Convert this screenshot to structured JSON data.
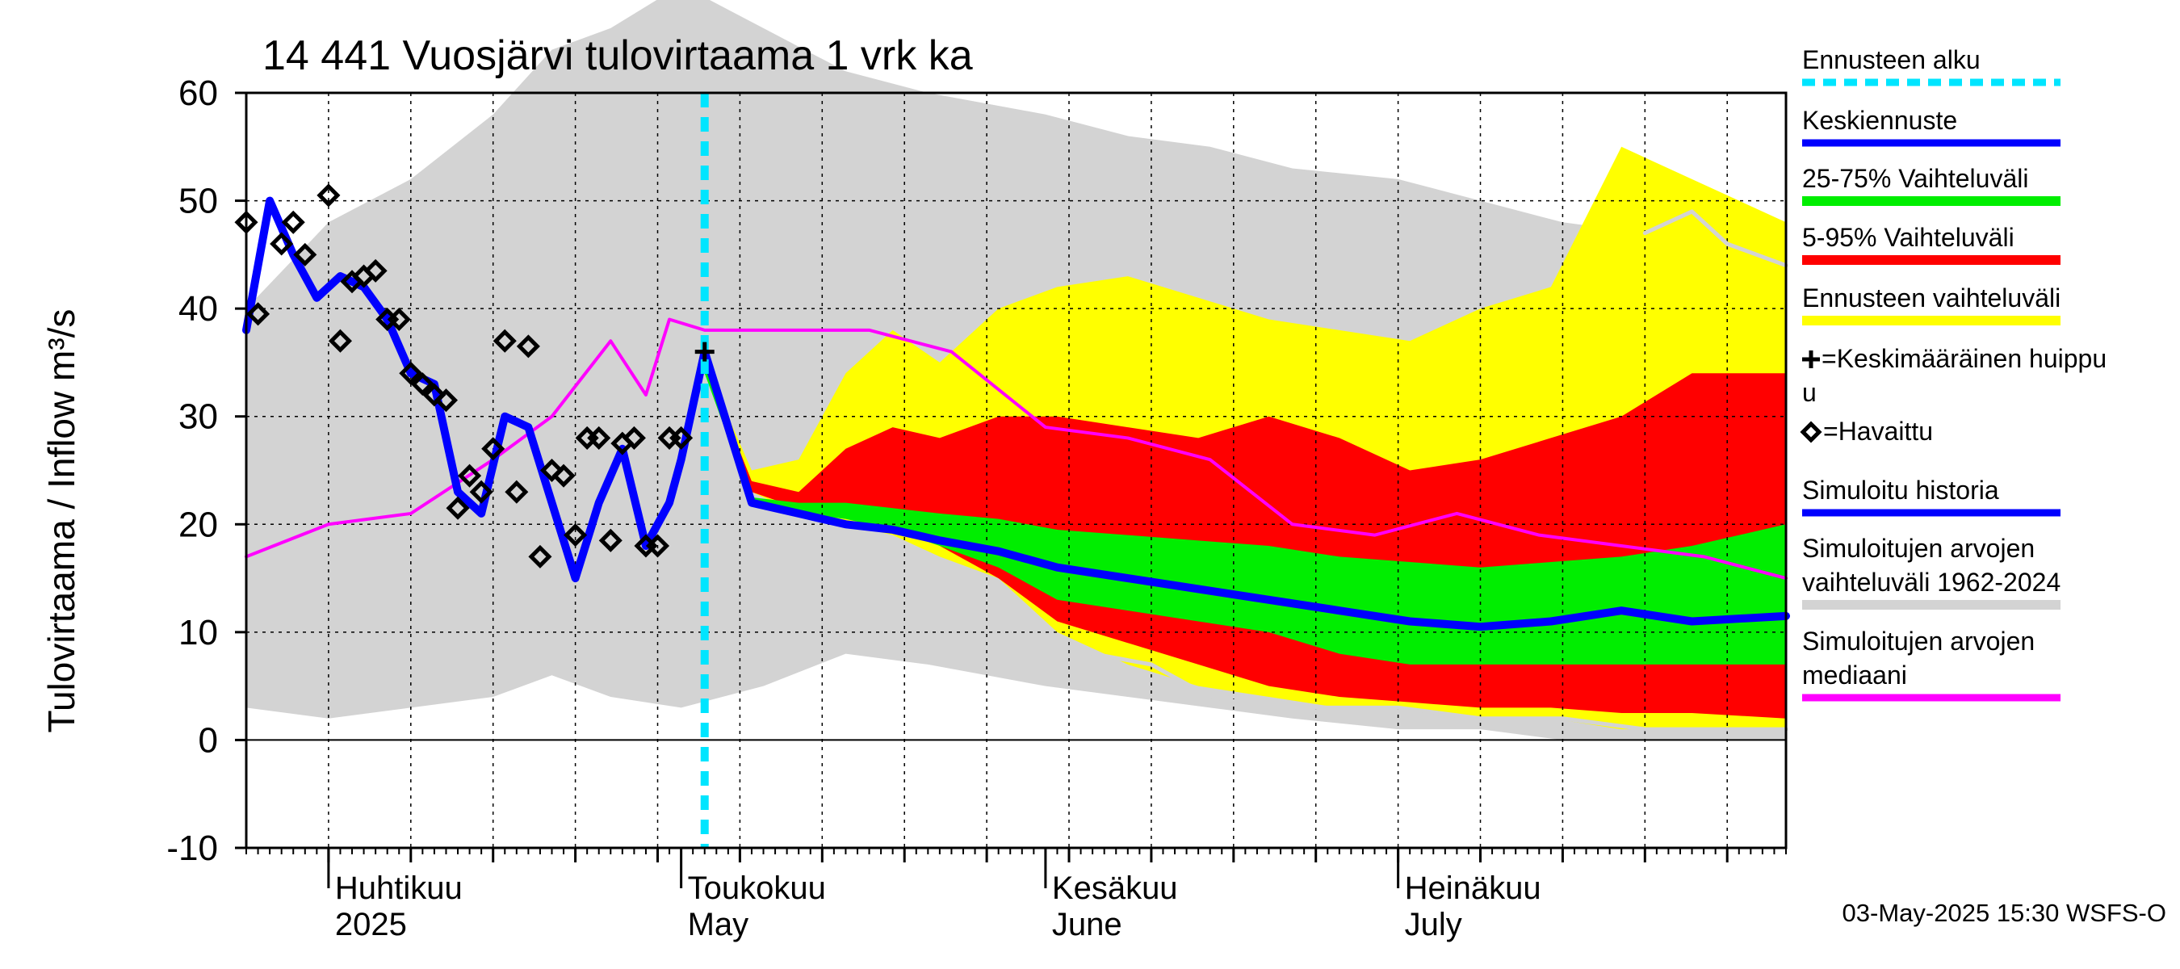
{
  "chart_data": {
    "type": "area",
    "title": "14 441 Vuosjärvi tulovirtaama 1 vrk ka",
    "ylabel": "Tulovirtaama / Inflow   m³/s",
    "ylim": [
      -10,
      60
    ],
    "yticks": [
      -10,
      0,
      10,
      20,
      30,
      40,
      50,
      60
    ],
    "xlim": [
      "2025-03-25",
      "2025-08-03"
    ],
    "grid": true,
    "months": [
      {
        "label_fi": "Huhtikuu",
        "label_en": "2025",
        "date": "2025-04-01"
      },
      {
        "label_fi": "Toukokuu",
        "label_en": "May",
        "date": "2025-05-01"
      },
      {
        "label_fi": "Kesäkuu",
        "label_en": "June",
        "date": "2025-06-01"
      },
      {
        "label_fi": "Heinäkuu",
        "label_en": "July",
        "date": "2025-07-01"
      }
    ],
    "forecast_start": "2025-05-03",
    "legend": [
      {
        "label": "Ennusteen alku",
        "color": "#00e5ff",
        "style": "dashed"
      },
      {
        "label": "Keskiennuste",
        "color": "#0000ff",
        "style": "line"
      },
      {
        "label": "25-75% Vaihteluväli",
        "color": "#00ee00",
        "style": "band"
      },
      {
        "label": "5-95% Vaihteluväli",
        "color": "#ff0000",
        "style": "band"
      },
      {
        "label": "Ennusteen vaihteluväli",
        "color": "#ffff00",
        "style": "band"
      },
      {
        "label": "=Keskimääräinen huippu",
        "label2": "u",
        "color": "#000000",
        "style": "plus"
      },
      {
        "label": "=Havaittu",
        "color": "#000000",
        "style": "diamond"
      },
      {
        "label": "Simuloitu historia",
        "color": "#0000ff",
        "style": "line"
      },
      {
        "label": "Simuloitujen arvojen",
        "label2": "vaihteluväli 1962-2024",
        "color": "#d3d3d3",
        "style": "band"
      },
      {
        "label": "Simuloitujen arvojen",
        "label2": "mediaani",
        "color": "#ff00ff",
        "style": "line"
      }
    ],
    "series": [
      {
        "name": "Simuloitujen arvojen vaihteluväli 1962-2024",
        "role": "hist_band",
        "color": "#d3d3d3",
        "x": [
          "2025-03-25",
          "2025-04-01",
          "2025-04-08",
          "2025-04-15",
          "2025-04-20",
          "2025-04-25",
          "2025-05-01",
          "2025-05-08",
          "2025-05-15",
          "2025-05-22",
          "2025-06-01",
          "2025-06-08",
          "2025-06-15",
          "2025-06-22",
          "2025-07-01",
          "2025-07-08",
          "2025-07-15",
          "2025-07-22",
          "2025-08-03"
        ],
        "low": [
          3,
          2,
          3,
          4,
          6,
          4,
          3,
          5,
          8,
          7,
          5,
          4,
          3,
          2,
          1,
          1,
          0,
          0,
          0
        ],
        "high": [
          40,
          48,
          52,
          58,
          64,
          66,
          70,
          66,
          62,
          60,
          58,
          56,
          55,
          53,
          52,
          50,
          48,
          47,
          45
        ]
      },
      {
        "name": "Ennusteen vaihteluväli",
        "role": "band",
        "color": "#ffff00",
        "x": [
          "2025-05-03",
          "2025-05-07",
          "2025-05-11",
          "2025-05-15",
          "2025-05-19",
          "2025-05-23",
          "2025-05-28",
          "2025-06-02",
          "2025-06-08",
          "2025-06-14",
          "2025-06-20",
          "2025-06-26",
          "2025-07-02",
          "2025-07-08",
          "2025-07-14",
          "2025-07-20",
          "2025-07-26",
          "2025-08-03"
        ],
        "low": [
          34,
          23,
          21,
          20,
          19,
          17,
          15,
          10,
          7,
          5,
          4,
          3,
          3,
          2,
          2,
          1,
          1,
          1
        ],
        "high": [
          35,
          25,
          26,
          34,
          38,
          35,
          40,
          42,
          43,
          41,
          39,
          38,
          37,
          40,
          42,
          55,
          52,
          48
        ]
      },
      {
        "name": "5-95% Vaihteluväli",
        "role": "band",
        "color": "#ff0000",
        "x": [
          "2025-05-03",
          "2025-05-07",
          "2025-05-11",
          "2025-05-15",
          "2025-05-19",
          "2025-05-23",
          "2025-05-28",
          "2025-06-02",
          "2025-06-08",
          "2025-06-14",
          "2025-06-20",
          "2025-06-26",
          "2025-07-02",
          "2025-07-08",
          "2025-07-14",
          "2025-07-20",
          "2025-07-26",
          "2025-08-03"
        ],
        "low": [
          34,
          23,
          21.5,
          21,
          20,
          18,
          15,
          11,
          9,
          7,
          5,
          4,
          3.5,
          3,
          3,
          2.5,
          2.5,
          2
        ],
        "high": [
          35,
          24,
          23,
          27,
          29,
          28,
          30,
          30,
          29,
          28,
          30,
          28,
          25,
          26,
          28,
          30,
          34,
          34
        ]
      },
      {
        "name": "25-75% Vaihteluväli",
        "role": "band",
        "color": "#00ee00",
        "x": [
          "2025-05-03",
          "2025-05-07",
          "2025-05-11",
          "2025-05-15",
          "2025-05-19",
          "2025-05-23",
          "2025-05-28",
          "2025-06-02",
          "2025-06-08",
          "2025-06-14",
          "2025-06-20",
          "2025-06-26",
          "2025-07-02",
          "2025-07-08",
          "2025-07-14",
          "2025-07-20",
          "2025-07-26",
          "2025-08-03"
        ],
        "low": [
          34,
          22,
          21,
          20.5,
          19.5,
          18,
          16,
          13,
          12,
          11,
          10,
          8,
          7,
          7,
          7,
          7,
          7,
          7
        ],
        "high": [
          35,
          22.5,
          22,
          22,
          21.5,
          21,
          20.5,
          19.5,
          19,
          18.5,
          18,
          17,
          16.5,
          16,
          16.5,
          17,
          18,
          20
        ]
      },
      {
        "name": "Simuloitujen arvojen mediaani",
        "role": "line",
        "color": "#ff00ff",
        "width": 4,
        "x": [
          "2025-03-25",
          "2025-04-01",
          "2025-04-08",
          "2025-04-15",
          "2025-04-20",
          "2025-04-25",
          "2025-04-28",
          "2025-04-30",
          "2025-05-03",
          "2025-05-10",
          "2025-05-17",
          "2025-05-24",
          "2025-06-01",
          "2025-06-08",
          "2025-06-15",
          "2025-06-22",
          "2025-06-29",
          "2025-07-06",
          "2025-07-13",
          "2025-07-20",
          "2025-07-27",
          "2025-08-03"
        ],
        "y": [
          17,
          20,
          21,
          26,
          30,
          37,
          32,
          39,
          38,
          38,
          38,
          36,
          29,
          28,
          26,
          20,
          19,
          21,
          19,
          18,
          17,
          15
        ]
      },
      {
        "name": "Simuloitujen arvojen vaihteluväli (low curve)",
        "role": "line",
        "color": "#d3d3d3",
        "width": 5,
        "x": [
          "2025-06-05",
          "2025-06-10",
          "2025-06-15",
          "2025-06-20",
          "2025-06-25",
          "2025-07-01",
          "2025-07-08",
          "2025-07-15",
          "2025-07-22",
          "2025-07-29",
          "2025-08-03"
        ],
        "y": [
          8,
          7,
          4,
          3,
          3,
          3,
          2,
          2,
          1,
          1,
          1
        ]
      },
      {
        "name": "Simuloitujen arvojen vaihteluväli (high curve)",
        "role": "line",
        "color": "#d3d3d3",
        "width": 5,
        "x": [
          "2025-07-22",
          "2025-07-26",
          "2025-07-29",
          "2025-08-03"
        ],
        "y": [
          47,
          49,
          46,
          44
        ]
      },
      {
        "name": "Simuloitu historia",
        "role": "line",
        "color": "#0000ff",
        "width": 10,
        "x": [
          "2025-03-25",
          "2025-03-27",
          "2025-03-29",
          "2025-03-31",
          "2025-04-02",
          "2025-04-04",
          "2025-04-06",
          "2025-04-08",
          "2025-04-10",
          "2025-04-12",
          "2025-04-14",
          "2025-04-16",
          "2025-04-18",
          "2025-04-20",
          "2025-04-22",
          "2025-04-24",
          "2025-04-26",
          "2025-04-28",
          "2025-04-30",
          "2025-05-01",
          "2025-05-02",
          "2025-05-03"
        ],
        "y": [
          38,
          50,
          45,
          41,
          43,
          42,
          39,
          34,
          33,
          23,
          21,
          30,
          29,
          22,
          15,
          22,
          27,
          18,
          22,
          26,
          31,
          36
        ]
      },
      {
        "name": "Keskiennuste",
        "role": "line",
        "color": "#0000ff",
        "width": 10,
        "x": [
          "2025-05-03",
          "2025-05-05",
          "2025-05-07",
          "2025-05-11",
          "2025-05-15",
          "2025-05-19",
          "2025-05-23",
          "2025-05-28",
          "2025-06-02",
          "2025-06-08",
          "2025-06-14",
          "2025-06-20",
          "2025-06-26",
          "2025-07-02",
          "2025-07-08",
          "2025-07-14",
          "2025-07-20",
          "2025-07-26",
          "2025-08-03"
        ],
        "y": [
          36,
          29,
          22,
          21,
          20,
          19.5,
          18.5,
          17.5,
          16,
          15,
          14,
          13,
          12,
          11,
          10.5,
          11,
          12,
          11,
          11.5
        ]
      }
    ],
    "observed": {
      "name": "Havaittu",
      "x": [
        "2025-03-25",
        "2025-03-26",
        "2025-03-28",
        "2025-03-29",
        "2025-03-30",
        "2025-04-01",
        "2025-04-02",
        "2025-04-03",
        "2025-04-04",
        "2025-04-05",
        "2025-04-06",
        "2025-04-07",
        "2025-04-08",
        "2025-04-09",
        "2025-04-10",
        "2025-04-11",
        "2025-04-12",
        "2025-04-13",
        "2025-04-14",
        "2025-04-15",
        "2025-04-16",
        "2025-04-17",
        "2025-04-18",
        "2025-04-19",
        "2025-04-20",
        "2025-04-21",
        "2025-04-22",
        "2025-04-23",
        "2025-04-24",
        "2025-04-25",
        "2025-04-26",
        "2025-04-27",
        "2025-04-28",
        "2025-04-29",
        "2025-04-30",
        "2025-05-01"
      ],
      "y": [
        48,
        39.5,
        46,
        48,
        45,
        50.5,
        37,
        42.5,
        43,
        43.5,
        39,
        39,
        34,
        33,
        32,
        31.5,
        21.5,
        24.5,
        23,
        27,
        37,
        23,
        36.5,
        17,
        25,
        24.5,
        19,
        28,
        28,
        18.5,
        27.5,
        28,
        18,
        18,
        28,
        28
      ]
    },
    "mean_peak": {
      "x": "2025-05-03",
      "y": 36
    }
  },
  "footer": "03-May-2025 15:30 WSFS-O"
}
